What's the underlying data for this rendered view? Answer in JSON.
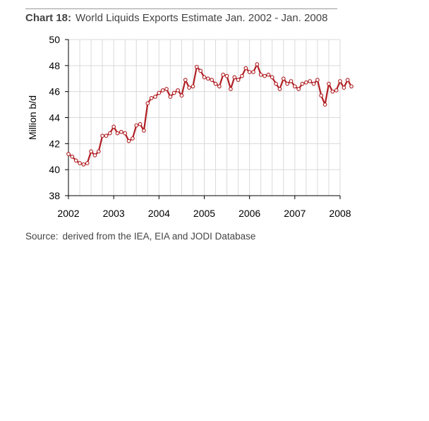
{
  "header": {
    "chart_number": "Chart 18:",
    "title": "World Liquids Exports Estimate Jan. 2002 - Jan. 2008"
  },
  "footer": {
    "source_label": "Source:",
    "source_text": "derived from the IEA, EIA and JODI Database"
  },
  "colors": {
    "series_line": "#b01e23",
    "marker_fill": "#ffffff",
    "grid": "#d9d9d9",
    "axis": "#000000"
  },
  "chart_data": {
    "type": "line",
    "title": "World Liquids Exports Estimate Jan. 2002 - Jan. 2008",
    "xlabel": "",
    "ylabel": "Million b/d",
    "xlim": [
      2002,
      2008
    ],
    "ylim": [
      38,
      50
    ],
    "xticks": [
      2002,
      2003,
      2004,
      2005,
      2006,
      2007,
      2008
    ],
    "xtick_labels": [
      "2002",
      "2003",
      "2004",
      "2005",
      "2006",
      "2007",
      "2008"
    ],
    "yticks": [
      38,
      40,
      42,
      44,
      46,
      48,
      50
    ],
    "ytick_labels": [
      "38",
      "40",
      "42",
      "44",
      "46",
      "48",
      "50"
    ],
    "grid": true,
    "legend": "none",
    "series": [
      {
        "name": "World Liquids Exports",
        "x_start": 2002,
        "x_step_months": 1,
        "values": [
          41.2,
          41.0,
          40.7,
          40.5,
          40.4,
          40.5,
          41.4,
          41.1,
          41.4,
          42.6,
          42.6,
          42.8,
          43.3,
          42.8,
          42.9,
          42.8,
          42.2,
          42.4,
          43.4,
          43.5,
          43.0,
          45.1,
          45.5,
          45.6,
          45.9,
          46.1,
          46.2,
          45.6,
          45.9,
          46.1,
          45.7,
          46.9,
          46.3,
          46.4,
          47.9,
          47.6,
          47.1,
          47.0,
          46.9,
          46.6,
          46.4,
          47.3,
          47.2,
          46.2,
          47.1,
          46.9,
          47.2,
          47.8,
          47.5,
          47.5,
          48.1,
          47.3,
          47.2,
          47.3,
          47.1,
          46.6,
          46.2,
          47.0,
          46.6,
          46.8,
          46.4,
          46.2,
          46.6,
          46.7,
          46.8,
          46.6,
          46.9,
          45.7,
          45.0,
          46.6,
          46.0,
          46.1,
          46.8,
          46.3,
          46.9,
          46.4
        ]
      }
    ]
  }
}
